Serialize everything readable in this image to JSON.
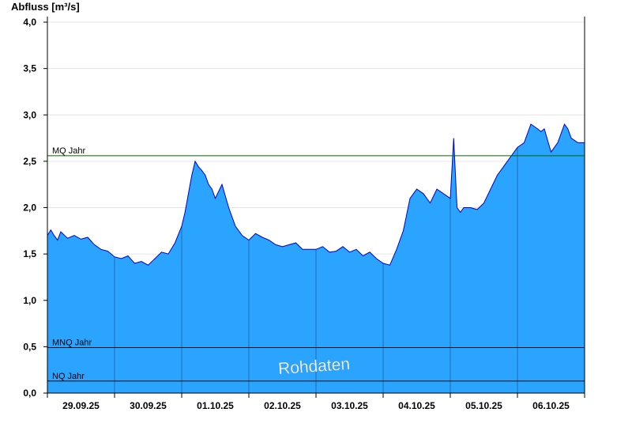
{
  "colors": {
    "area_fill": "#2aa4ff",
    "area_line": "#0000cc",
    "mq_line": "#006400",
    "ref_line": "#000000",
    "grid": "#e6e6e6",
    "watermark": "#ffffff"
  },
  "chart_data": {
    "type": "area",
    "ylabel": "Abfluss [m³/s]",
    "ylim": [
      0,
      4.06
    ],
    "yticks": [
      {
        "value": 0.0,
        "label": "0,0"
      },
      {
        "value": 0.5,
        "label": "0,5"
      },
      {
        "value": 1.0,
        "label": "1,0"
      },
      {
        "value": 1.5,
        "label": "1,5"
      },
      {
        "value": 2.0,
        "label": "2,0"
      },
      {
        "value": 2.5,
        "label": "2,5"
      },
      {
        "value": 3.0,
        "label": "3,0"
      },
      {
        "value": 3.5,
        "label": "3,5"
      },
      {
        "value": 4.0,
        "label": "4,0"
      }
    ],
    "xlim": [
      0,
      8
    ],
    "days": [
      "29.09.25",
      "30.09.25",
      "01.10.25",
      "02.10.25",
      "03.10.25",
      "04.10.25",
      "05.10.25",
      "06.10.25"
    ],
    "reference_lines": [
      {
        "label": "MQ Jahr",
        "value": 2.56
      },
      {
        "label": "MNQ Jahr",
        "value": 0.49
      },
      {
        "label": "NQ Jahr",
        "value": 0.13
      }
    ],
    "watermark": "Rohdaten",
    "grid": true,
    "series": [
      {
        "x": [
          0.0,
          0.05,
          0.1,
          0.15,
          0.2,
          0.3,
          0.4,
          0.5,
          0.6,
          0.7,
          0.8,
          0.9,
          1.0,
          1.1,
          1.2,
          1.3,
          1.4,
          1.5,
          1.6,
          1.7,
          1.8,
          1.9,
          2.0,
          2.05,
          2.1,
          2.15,
          2.2,
          2.25,
          2.3,
          2.35,
          2.4,
          2.45,
          2.5,
          2.6,
          2.7,
          2.8,
          2.9,
          3.0,
          3.1,
          3.2,
          3.3,
          3.4,
          3.5,
          3.6,
          3.7,
          3.8,
          3.9,
          4.0,
          4.1,
          4.2,
          4.3,
          4.4,
          4.5,
          4.6,
          4.7,
          4.8,
          4.9,
          5.0,
          5.1,
          5.2,
          5.3,
          5.4,
          5.5,
          5.6,
          5.7,
          5.8,
          5.9,
          6.0,
          6.05,
          6.1,
          6.15,
          6.2,
          6.3,
          6.4,
          6.5,
          6.6,
          6.7,
          6.8,
          6.9,
          7.0,
          7.1,
          7.2,
          7.3,
          7.35,
          7.4,
          7.5,
          7.6,
          7.7,
          7.75,
          7.8,
          7.9,
          8.0
        ],
        "y": [
          1.7,
          1.76,
          1.7,
          1.65,
          1.74,
          1.67,
          1.7,
          1.66,
          1.68,
          1.6,
          1.55,
          1.53,
          1.47,
          1.45,
          1.48,
          1.4,
          1.42,
          1.38,
          1.45,
          1.52,
          1.5,
          1.62,
          1.8,
          1.95,
          2.15,
          2.35,
          2.5,
          2.44,
          2.4,
          2.35,
          2.25,
          2.2,
          2.1,
          2.25,
          2.0,
          1.8,
          1.7,
          1.65,
          1.72,
          1.68,
          1.65,
          1.6,
          1.58,
          1.6,
          1.62,
          1.55,
          1.55,
          1.55,
          1.58,
          1.52,
          1.53,
          1.58,
          1.52,
          1.55,
          1.48,
          1.52,
          1.45,
          1.4,
          1.38,
          1.55,
          1.75,
          2.1,
          2.2,
          2.15,
          2.05,
          2.2,
          2.15,
          2.1,
          2.75,
          2.0,
          1.95,
          2.0,
          2.0,
          1.98,
          2.05,
          2.2,
          2.35,
          2.45,
          2.55,
          2.65,
          2.7,
          2.9,
          2.85,
          2.82,
          2.85,
          2.6,
          2.7,
          2.9,
          2.85,
          2.75,
          2.7,
          2.7
        ]
      }
    ]
  }
}
